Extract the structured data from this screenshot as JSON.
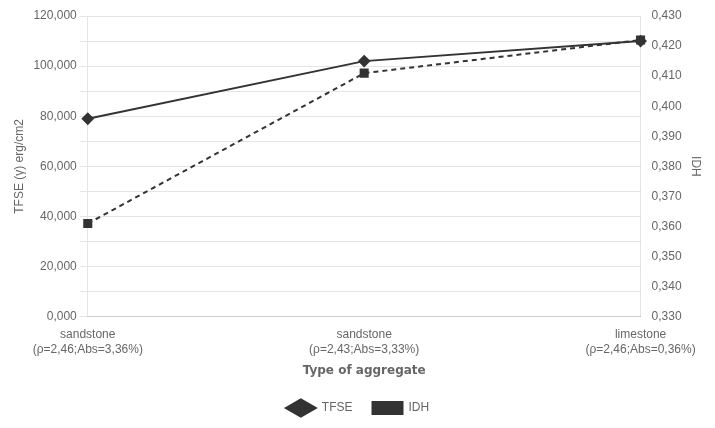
{
  "chart_data": {
    "type": "line",
    "categories": [
      "sandstone\n(ρ=2,46;Abs=3,36%)",
      "sandstone\n(ρ=2,43;Abs=3,33%)",
      "limestone\n(ρ=2,46;Abs=0,36%)"
    ],
    "series": [
      {
        "name": "TFSE",
        "color": "#333333",
        "values": [
          79000,
          102000,
          110000
        ],
        "marker": "diamond",
        "line_style": "solid"
      },
      {
        "name": "IDH",
        "color": "#333333",
        "values": [
          0.361,
          0.411,
          0.422
        ],
        "axis": "y2",
        "marker": "square",
        "line_style": "dashed"
      }
    ],
    "xlabel": "Type of aggregate",
    "ylabel": "TFSE (γ) erg/cm2",
    "y2label": "IDH",
    "ylim": [
      0,
      120000
    ],
    "yticks": [
      {
        "value": 0,
        "label": "0,000"
      },
      {
        "value": 10000,
        "label": null
      },
      {
        "value": 20000,
        "label": "20,000"
      },
      {
        "value": 30000,
        "label": null
      },
      {
        "value": 40000,
        "label": "40,000"
      },
      {
        "value": 50000,
        "label": null
      },
      {
        "value": 60000,
        "label": "60,000"
      },
      {
        "value": 70000,
        "label": null
      },
      {
        "value": 80000,
        "label": "80,000"
      },
      {
        "value": 90000,
        "label": null
      },
      {
        "value": 100000,
        "label": "100,000"
      },
      {
        "value": 110000,
        "label": null
      },
      {
        "value": 120000,
        "label": "120,000"
      }
    ],
    "y2lim": [
      0.33,
      0.43
    ],
    "y2ticks": [
      {
        "value": 0.33,
        "label": "0,330"
      },
      {
        "value": 0.34,
        "label": "0,340"
      },
      {
        "value": 0.35,
        "label": "0,350"
      },
      {
        "value": 0.36,
        "label": "0,360"
      },
      {
        "value": 0.37,
        "label": "0,370"
      },
      {
        "value": 0.38,
        "label": "0,380"
      },
      {
        "value": 0.39,
        "label": "0,390"
      },
      {
        "value": 0.4,
        "label": "0,400"
      },
      {
        "value": 0.41,
        "label": "0,410"
      },
      {
        "value": 0.42,
        "label": "0,420"
      },
      {
        "value": 0.43,
        "label": "0,430"
      }
    ],
    "grid": true,
    "legend": "bottom"
  }
}
